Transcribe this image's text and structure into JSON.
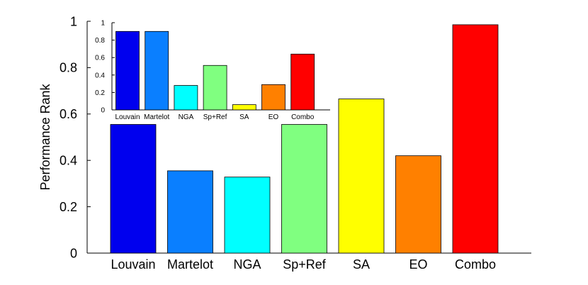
{
  "chart_data": [
    {
      "type": "bar",
      "xlabel": "",
      "ylabel": "Performance Rank",
      "ylim": [
        0,
        1
      ],
      "yticks": [
        0,
        0.2,
        0.4,
        0.6,
        0.8,
        1
      ],
      "ytick_labels": [
        "0",
        "0.2",
        "0.4",
        "0.6",
        "0.8",
        "1"
      ],
      "grid": false,
      "categories": [
        "Louvain",
        "Martelot",
        "NGA",
        "Sp+Ref",
        "SA",
        "EO",
        "Combo"
      ],
      "values": [
        0.555,
        0.355,
        0.328,
        0.555,
        0.665,
        0.42,
        0.985
      ],
      "colors": [
        "#0000ee",
        "#0a7fff",
        "#00ffff",
        "#80ff80",
        "#ffff00",
        "#ff8000",
        "#ff0000"
      ]
    },
    {
      "type": "bar",
      "xlabel": "",
      "ylabel": "",
      "ylim": [
        0,
        1
      ],
      "yticks": [
        0,
        0.2,
        0.4,
        0.6,
        0.8,
        1
      ],
      "ytick_labels": [
        "0",
        "0.2",
        "0.4",
        "0.6",
        "0.8",
        "1"
      ],
      "grid": false,
      "categories": [
        "Louvain",
        "Martelot",
        "NGA",
        "Sp+Ref",
        "SA",
        "EO",
        "Combo"
      ],
      "values": [
        0.9,
        0.9,
        0.28,
        0.51,
        0.06,
        0.29,
        0.64
      ],
      "colors": [
        "#0000ee",
        "#0a7fff",
        "#00ffff",
        "#80ff80",
        "#ffff00",
        "#ff8000",
        "#ff0000"
      ]
    }
  ]
}
